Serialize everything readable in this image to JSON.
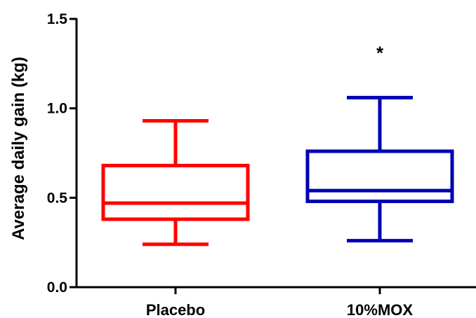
{
  "chart_data": {
    "type": "box",
    "title": "",
    "xlabel": "",
    "ylabel": "Average daily gain (kg)",
    "ylim": [
      0,
      1.5
    ],
    "yticks": [
      0.0,
      0.5,
      1.0,
      1.5
    ],
    "ytick_labels": [
      "0.0",
      "0.5",
      "1.0",
      "1.5"
    ],
    "grid": false,
    "categories": [
      "Placebo",
      "10%MOX"
    ],
    "boxes": [
      {
        "category": "Placebo",
        "min": 0.24,
        "q1": 0.38,
        "median": 0.47,
        "q3": 0.68,
        "max": 0.93,
        "color": "#ff0000"
      },
      {
        "category": "10%MOX",
        "min": 0.26,
        "q1": 0.48,
        "median": 0.54,
        "q3": 0.76,
        "max": 1.06,
        "color": "#0000b4"
      }
    ],
    "annotations": [
      {
        "category": "10%MOX",
        "text": "*",
        "y": 1.33
      }
    ]
  }
}
